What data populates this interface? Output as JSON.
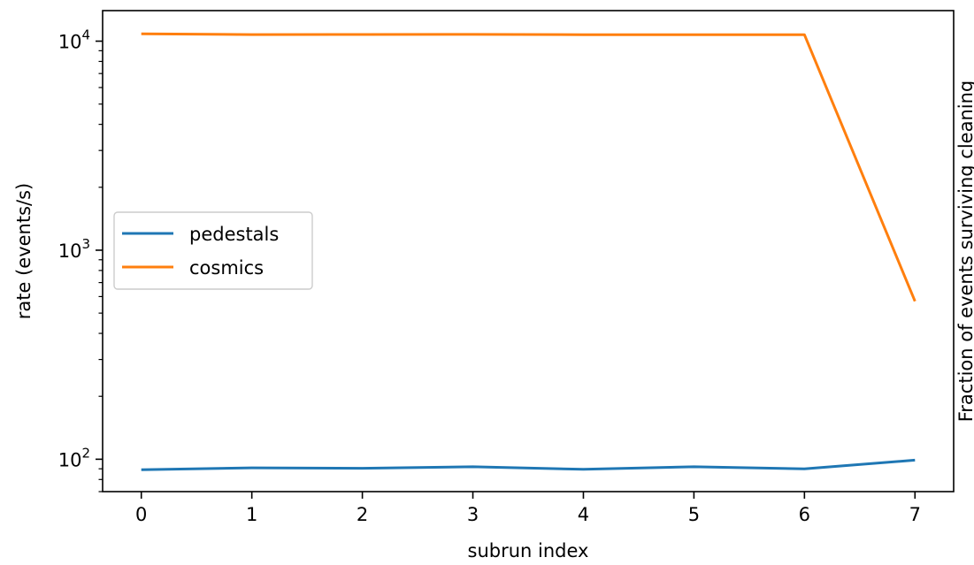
{
  "chart_data": {
    "type": "line",
    "x": [
      0,
      1,
      2,
      3,
      4,
      5,
      6,
      7
    ],
    "series": [
      {
        "name": "pedestals",
        "color": "#1f77b4",
        "values": [
          89,
          91,
          90.5,
          92,
          89.5,
          92,
          90,
          99
        ]
      },
      {
        "name": "cosmics",
        "color": "#ff7f0e",
        "values": [
          10850,
          10750,
          10760,
          10770,
          10740,
          10740,
          10740,
          570
        ]
      }
    ],
    "xlabel": "subrun index",
    "ylabel": "rate (events/s)",
    "y2label": "Fraction of events surviving cleaning",
    "yscale": "log",
    "ylim": [
      70,
      14000
    ],
    "xlim": [
      -0.35,
      7.35
    ],
    "xticks": [
      "0",
      "1",
      "2",
      "3",
      "4",
      "5",
      "6",
      "7"
    ],
    "yticks": [
      {
        "value": 100,
        "base": "10",
        "exp": "2"
      },
      {
        "value": 1000,
        "base": "10",
        "exp": "3"
      },
      {
        "value": 10000,
        "base": "10",
        "exp": "4"
      }
    ],
    "grid": false,
    "legend_position": "center-left"
  }
}
